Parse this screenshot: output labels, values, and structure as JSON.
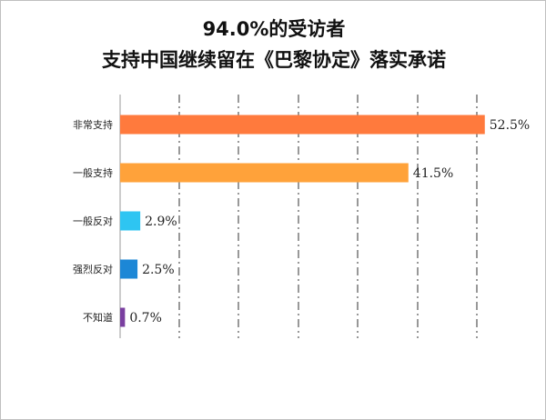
{
  "chart_data": {
    "type": "bar",
    "orientation": "horizontal",
    "title_lines": [
      "94.0%的受访者",
      "支持中国继续留在《巴黎协定》落实承诺"
    ],
    "categories": [
      "非常支持",
      "一般支持",
      "一般反对",
      "强烈反对",
      "不知道"
    ],
    "values": [
      52.5,
      41.5,
      2.9,
      2.5,
      0.7
    ],
    "value_labels": [
      "52.5%",
      "41.5%",
      "2.9%",
      "2.5%",
      "0.7%"
    ],
    "colors": [
      "#FF7A3D",
      "#FFA23A",
      "#2EC5F2",
      "#1C87D6",
      "#7A3FA0"
    ],
    "xlim": [
      0,
      60
    ],
    "grid": "vertical dash-dot",
    "legend": "none"
  }
}
